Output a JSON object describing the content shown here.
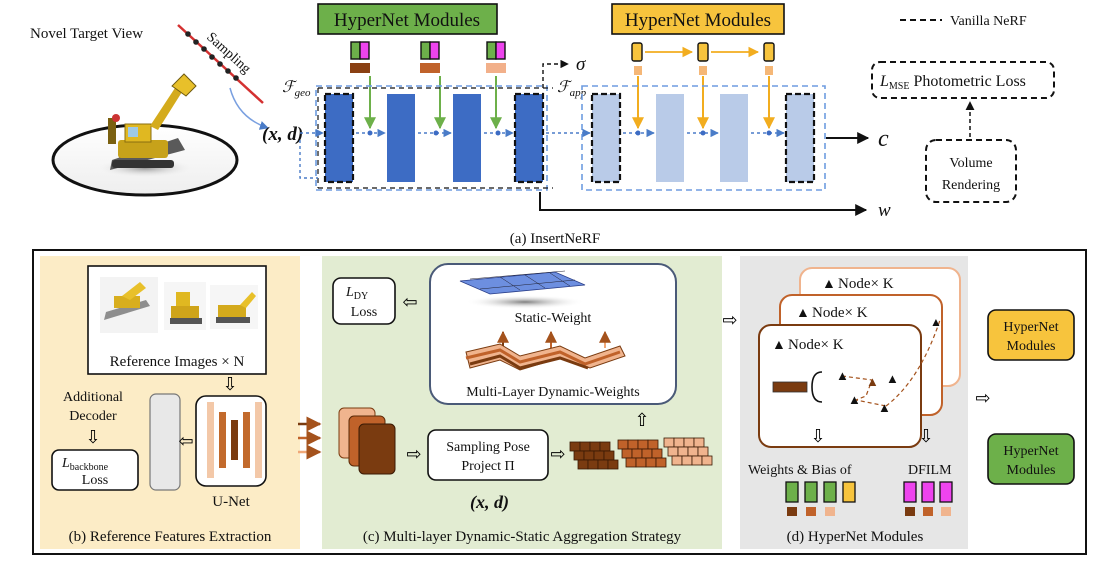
{
  "top": {
    "novel_view": "Novel Target View",
    "sampling": "Sampling",
    "xd": "(x, d)",
    "hyper_left": "HyperNet Modules",
    "hyper_right": "HyperNet Modules",
    "legend_vanilla": "Vanilla NeRF",
    "sigma": "σ",
    "f_geo": "ℱ",
    "f_geo_sub": "geo",
    "f_app": "ℱ",
    "f_app_sub": "app",
    "c_out": "c",
    "w_out": "w",
    "loss_L": "L",
    "loss_sub": "MSE",
    "loss_text": " Photometric Loss",
    "volume_line1": "Volume",
    "volume_line2": "Rendering",
    "caption": "(a) InsertNeRF"
  },
  "panel_b": {
    "ref_images": "Reference Images × N",
    "additional": "Additional",
    "decoder": "Decoder",
    "loss_L": "L",
    "loss_sub": "backbone",
    "loss_word": "Loss",
    "unet": "U-Net",
    "caption": "(b) Reference Features Extraction"
  },
  "panel_c": {
    "ldy_L": "L",
    "ldy_sub": "DY",
    "ldy_loss": "Loss",
    "static_weight": "Static-Weight",
    "dynamic_weights": "Multi-Layer Dynamic-Weights",
    "pose_line1": "Sampling Pose",
    "pose_line2": "Project Π",
    "xd": "(x, d)",
    "caption": "(c) Multi-layer Dynamic-Static Aggregation Strategy"
  },
  "panel_d": {
    "node1": "Node× K",
    "node2": "Node× K",
    "node3": "Node× K",
    "weights_bias": "Weights & Bias of",
    "dfilm": "DFILM",
    "caption": "(d) HyperNet Modules"
  },
  "right_labels": {
    "orange_line1": "HyperNet",
    "orange_line2": "Modules",
    "green_line1": "HyperNet",
    "green_line2": "Modules"
  },
  "colors": {
    "green": "#6db04a",
    "orange": "#f7c43d",
    "magenta": "#ee44ee",
    "dark_blue": "#3d6cc4",
    "light_blue": "#b9cbe8",
    "brown_dark": "#7a3b10",
    "brown_mid": "#c0622a",
    "brown_light": "#f0b48e",
    "panel_b_bg": "#fcecc6",
    "panel_c_bg": "#e2ecd2",
    "panel_d_bg": "#e6e6e6"
  }
}
